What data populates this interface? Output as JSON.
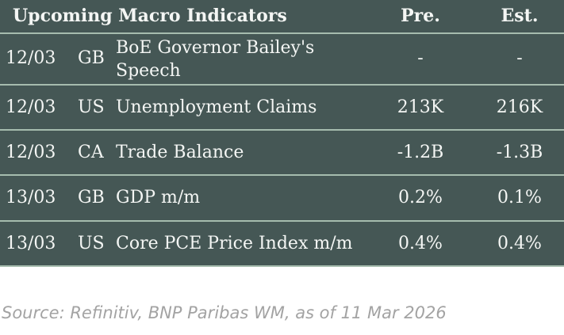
{
  "header": {
    "title": "Upcoming Macro Indicators",
    "pre": "Pre.",
    "est": "Est."
  },
  "rows": [
    {
      "date": "12/03",
      "country": "GB",
      "indicator": "BoE Governor Bailey's Speech",
      "pre": "-",
      "est": "-"
    },
    {
      "date": "12/03",
      "country": "US",
      "indicator": "Unemployment Claims",
      "pre": "213K",
      "est": "216K"
    },
    {
      "date": "12/03",
      "country": "CA",
      "indicator": "Trade Balance",
      "pre": "-1.2B",
      "est": "-1.3B"
    },
    {
      "date": "13/03",
      "country": "GB",
      "indicator": "GDP m/m",
      "pre": "0.2%",
      "est": "0.1%"
    },
    {
      "date": "13/03",
      "country": "US",
      "indicator": "Core PCE Price Index m/m",
      "pre": "0.4%",
      "est": "0.4%"
    }
  ],
  "source": "Source: Refinitiv, BNP Paribas WM, as of 11 Mar 2026",
  "colors": {
    "background": "#455755",
    "divider": "#a6bcae"
  }
}
